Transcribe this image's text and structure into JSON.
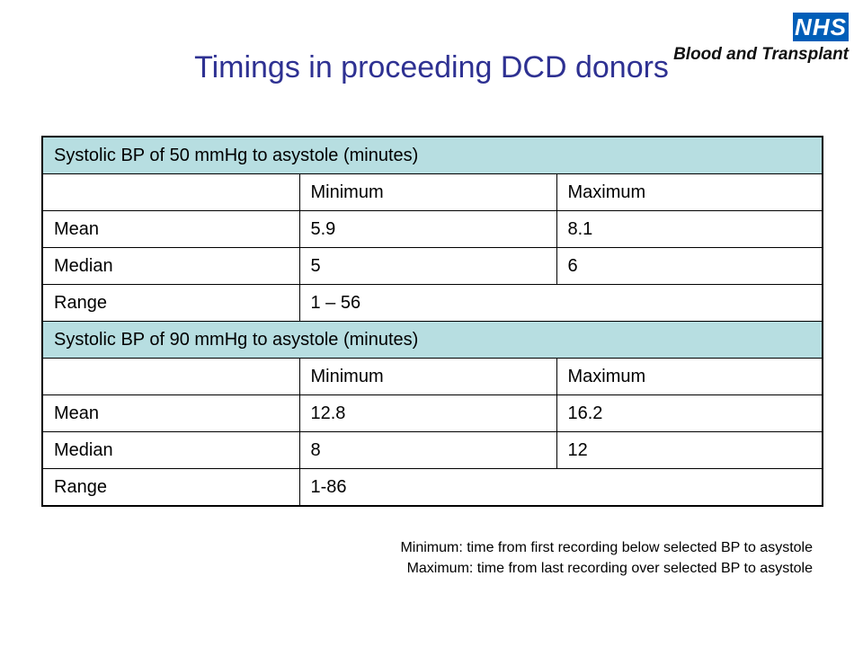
{
  "logo": {
    "badge": "NHS",
    "text": "Blood and Transplant"
  },
  "title": "Timings in proceeding DCD donors",
  "sections": [
    {
      "header": "Systolic BP of 50 mmHg to asystole (minutes)",
      "columns": [
        "",
        "Minimum",
        "Maximum"
      ],
      "rows": [
        {
          "label": "Mean",
          "min": "5.9",
          "max": "8.1"
        },
        {
          "label": "Median",
          "min": "5",
          "max": "6"
        }
      ],
      "range": {
        "label": "Range",
        "value": "1 – 56"
      }
    },
    {
      "header": "Systolic BP of 90 mmHg to asystole (minutes)",
      "columns": [
        "",
        "Minimum",
        "Maximum"
      ],
      "rows": [
        {
          "label": "Mean",
          "min": "12.8",
          "max": "16.2"
        },
        {
          "label": "Median",
          "min": "8",
          "max": "12"
        }
      ],
      "range": {
        "label": "Range",
        "value": "1-86"
      }
    }
  ],
  "footnotes": [
    "Minimum: time from first recording below selected BP to asystole",
    "Maximum: time from last recording over selected BP to asystole"
  ],
  "colors": {
    "title": "#2e3192",
    "section_header_bg": "#b7dee1",
    "nhs_blue": "#005eb8"
  }
}
